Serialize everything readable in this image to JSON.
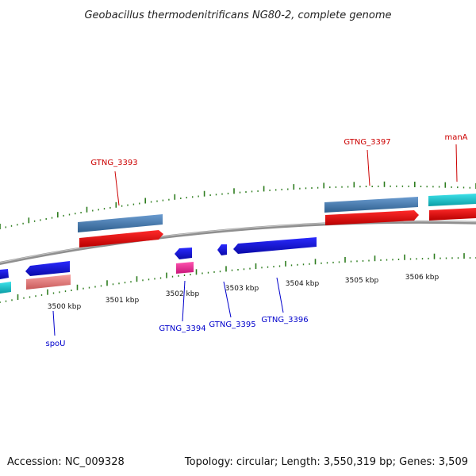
{
  "title": "Geobacillus thermodenitrificans NG80-2, complete genome",
  "footer": {
    "accession": "Accession: NC_009328",
    "summary": "Topology: circular; Length: 3,550,319 bp; Genes: 3,509"
  },
  "scale_labels": [
    "3500 kbp",
    "3501 kbp",
    "3502 kbp",
    "3503 kbp",
    "3504 kbp",
    "3505 kbp",
    "3506 kbp"
  ],
  "gene_labels": {
    "top": [
      "GTNG_3393",
      "GTNG_3397",
      "manA"
    ],
    "bottom": [
      "spoU",
      "GTNG_3394",
      "GTNG_3395",
      "GTNG_3396"
    ]
  },
  "colors": {
    "backbone": "#8a8a8a",
    "tick": "#2e7d1f",
    "cds_forward": "#ee1111",
    "cds_reverse": "#1a1ae6",
    "gene_forward": "#4a7fb5",
    "gene_reverse": "#f08080",
    "rna": "#19c8d2",
    "rna_reverse": "#ee3399",
    "label_forward": "#cc0000",
    "label_reverse": "#0000cc"
  }
}
